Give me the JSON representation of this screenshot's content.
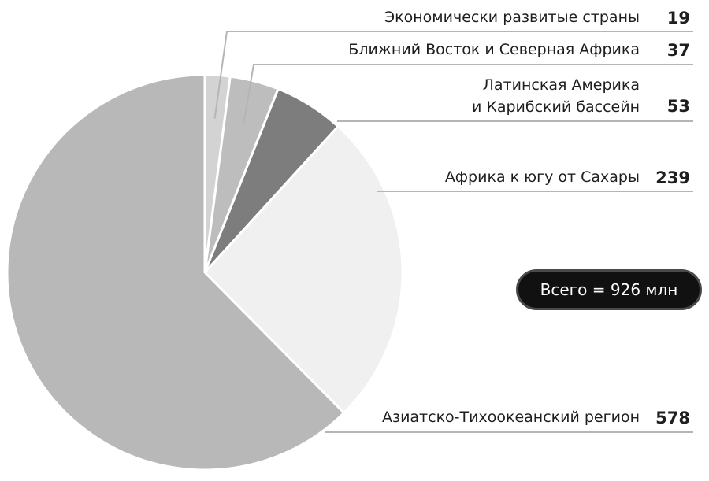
{
  "chart_data": {
    "type": "pie",
    "slices": [
      {
        "label": [
          "Экономически развитые страны"
        ],
        "value": 19,
        "color": "#d3d3d3"
      },
      {
        "label": [
          "Ближний Восток и Северная Африка"
        ],
        "value": 37,
        "color": "#bdbdbd"
      },
      {
        "label": [
          "Латинская Америка",
          "и Карибский бассейн"
        ],
        "value": 53,
        "color": "#7d7d7d"
      },
      {
        "label": [
          "Африка к югу от Сахары"
        ],
        "value": 239,
        "color": "#f0f0f0"
      },
      {
        "label": [
          "Азиатско-Тихоокеанский регион"
        ],
        "value": 578,
        "color": "#b8b8b8"
      }
    ],
    "total_label": "Всего = 926 млн"
  }
}
